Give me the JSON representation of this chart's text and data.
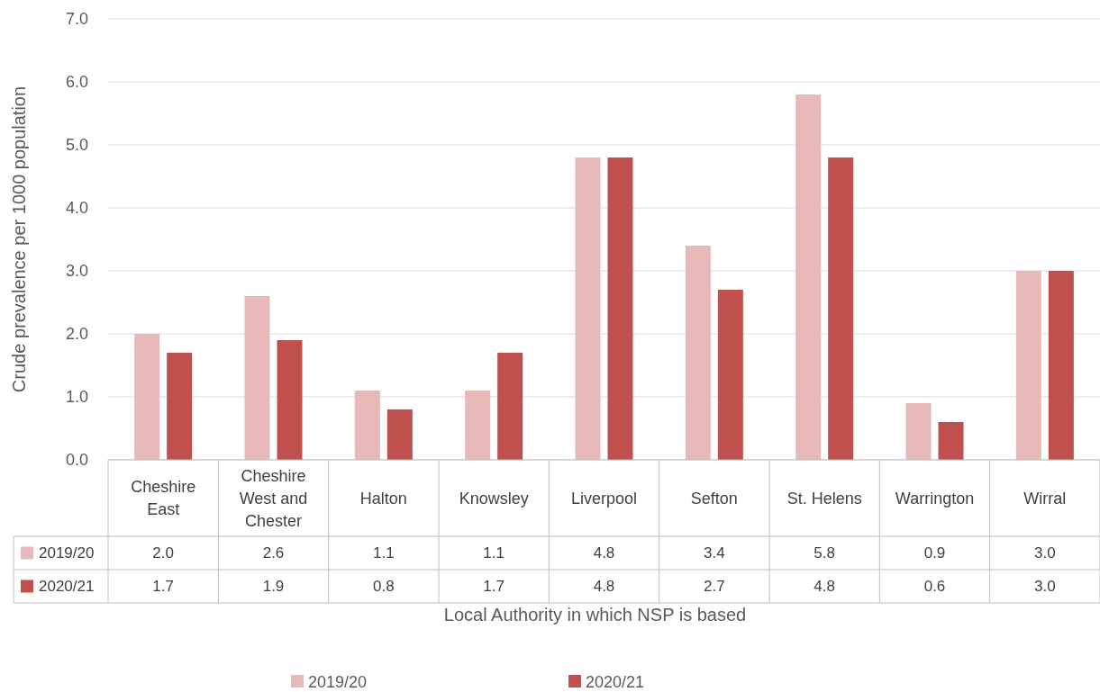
{
  "chart_data": {
    "type": "bar",
    "xlabel": "Local Authority in which NSP is based",
    "ylabel": "Crude prevalence per 1000 population",
    "categories": [
      "Cheshire East",
      "Cheshire West and Chester",
      "Halton",
      "Knowsley",
      "Liverpool",
      "Sefton",
      "St. Helens",
      "Warrington",
      "Wirral"
    ],
    "series": [
      {
        "name": "2019/20",
        "color": "#e6b8b7",
        "values": [
          2.0,
          2.6,
          1.1,
          1.1,
          4.8,
          3.4,
          5.8,
          0.9,
          3.0
        ],
        "value_labels": [
          "2.0",
          "2.6",
          "1.1",
          "1.1",
          "4.8",
          "3.4",
          "5.8",
          "0.9",
          "3.0"
        ]
      },
      {
        "name": "2020/21",
        "color": "#c0504d",
        "values": [
          1.7,
          1.9,
          0.8,
          1.7,
          4.8,
          2.7,
          4.8,
          0.6,
          3.0
        ],
        "value_labels": [
          "1.7",
          "1.9",
          "0.8",
          "1.7",
          "4.8",
          "2.7",
          "4.8",
          "0.6",
          "3.0"
        ]
      }
    ],
    "ylim": [
      0,
      7
    ],
    "yticks": [
      {
        "value": 0,
        "label": "0.0"
      },
      {
        "value": 1,
        "label": "1.0"
      },
      {
        "value": 2,
        "label": "2.0"
      },
      {
        "value": 3,
        "label": "3.0"
      },
      {
        "value": 4,
        "label": "4.0"
      },
      {
        "value": 5,
        "label": "5.0"
      },
      {
        "value": 6,
        "label": "6.0"
      },
      {
        "value": 7,
        "label": "7.0"
      }
    ],
    "grid": "y",
    "legend": "bottom"
  }
}
